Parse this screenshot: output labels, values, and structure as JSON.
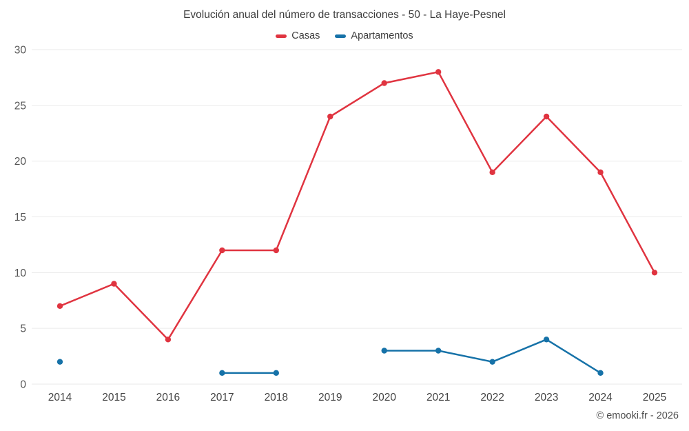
{
  "title": "Evolución anual del número de transacciones - 50 - La Haye-Pesnel",
  "footer": "© emooki.fr - 2026",
  "chart_data": {
    "type": "line",
    "title": "Evolución anual del número de transacciones - 50 - La Haye-Pesnel",
    "categories": [
      "2014",
      "2015",
      "2016",
      "2017",
      "2018",
      "2019",
      "2020",
      "2021",
      "2022",
      "2023",
      "2024",
      "2025"
    ],
    "series": [
      {
        "name": "Casas",
        "color": "#e03440",
        "values": [
          7,
          9,
          4,
          12,
          12,
          24,
          27,
          28,
          19,
          24,
          19,
          10
        ]
      },
      {
        "name": "Apartamentos",
        "color": "#1672a8",
        "values": [
          2,
          null,
          null,
          1,
          1,
          null,
          3,
          3,
          2,
          4,
          1,
          null
        ]
      }
    ],
    "xlabel": "",
    "ylabel": "",
    "ylim": [
      0,
      30
    ],
    "yticks": [
      0,
      5,
      10,
      15,
      20,
      25,
      30
    ],
    "grid": true,
    "legend_position": "top",
    "grid_color": "#e9e9e9",
    "tick_color": "#555555",
    "xtick_color": "#444444"
  }
}
